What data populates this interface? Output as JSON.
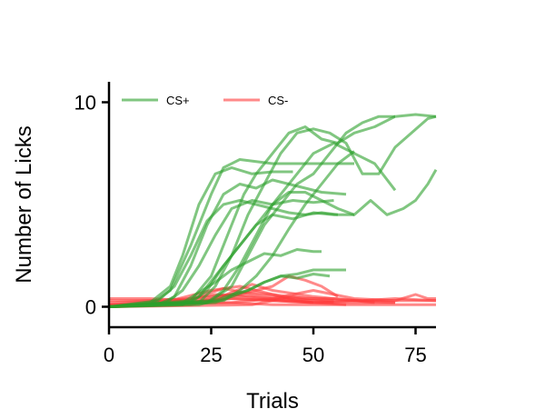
{
  "chart_data": {
    "type": "line",
    "title": "",
    "xlabel": "Trials",
    "ylabel": "Number of Licks",
    "xlim": [
      0,
      80
    ],
    "ylim": [
      -1,
      11
    ],
    "xticks": [
      0,
      25,
      50,
      75
    ],
    "yticks": [
      0,
      10
    ],
    "grid": false,
    "legend": {
      "placement": "top-left",
      "entries": [
        {
          "label": "CS+",
          "color": "#2ca02c"
        },
        {
          "label": "CS-",
          "color": "#ff3b3b"
        }
      ]
    },
    "colors": {
      "cs_plus": "#2ca02c",
      "cs_minus": "#ff3b3b"
    },
    "series_cs_plus": [
      {
        "x": [
          0,
          10,
          15,
          20,
          25,
          28,
          32,
          40,
          45,
          50,
          55,
          60
        ],
        "y": [
          0,
          0.1,
          0.8,
          3,
          5.5,
          6.8,
          7.2,
          7,
          7,
          7,
          7,
          7
        ]
      },
      {
        "x": [
          0,
          10,
          15,
          18,
          22,
          26,
          30,
          35,
          40,
          45
        ],
        "y": [
          0,
          0.2,
          1,
          2.5,
          5,
          6.5,
          6.8,
          6.5,
          6.6,
          6.6
        ]
      },
      {
        "x": [
          0,
          12,
          16,
          20,
          24,
          28,
          32,
          36,
          40,
          44,
          48,
          52,
          58
        ],
        "y": [
          0,
          0.1,
          0.5,
          2,
          4,
          5.5,
          6,
          5.8,
          6.2,
          6,
          5.8,
          5.6,
          5.5
        ]
      },
      {
        "x": [
          0,
          14,
          18,
          22,
          26,
          30,
          35,
          40,
          45,
          50,
          55
        ],
        "y": [
          0,
          0.2,
          0.8,
          2,
          3.5,
          4.8,
          5.2,
          5,
          5.2,
          5.1,
          5.2
        ]
      },
      {
        "x": [
          0,
          12,
          16,
          20,
          24,
          28,
          32,
          36,
          40,
          44,
          48,
          52,
          56
        ],
        "y": [
          0,
          0.3,
          1,
          2.5,
          4.2,
          5,
          5.2,
          5,
          4.8,
          4.6,
          4.5,
          4.6,
          4.5
        ]
      },
      {
        "x": [
          0,
          20,
          25,
          30,
          33,
          36,
          40,
          44,
          48,
          52,
          56,
          60,
          65,
          70,
          75,
          80
        ],
        "y": [
          0,
          0.3,
          1.5,
          4,
          5.5,
          6.5,
          7.5,
          8.5,
          8.8,
          8.2,
          8,
          8.5,
          8.8,
          9.3,
          9.4,
          9.3
        ]
      },
      {
        "x": [
          0,
          22,
          26,
          30,
          34,
          38,
          42,
          46,
          50,
          54,
          58,
          62,
          66,
          70,
          74,
          78,
          80
        ],
        "y": [
          0,
          0.2,
          1,
          2.5,
          4.5,
          6,
          7.5,
          8.5,
          8.7,
          8.5,
          8,
          6.5,
          6.5,
          7.8,
          8.5,
          9.2,
          9.3
        ]
      },
      {
        "x": [
          0,
          24,
          28,
          32,
          36,
          40,
          44,
          48,
          52,
          56,
          60,
          64,
          68,
          72,
          75,
          78,
          80
        ],
        "y": [
          0,
          0.2,
          0.8,
          2,
          3.5,
          5,
          5.6,
          5.6,
          5.2,
          4.8,
          4.5,
          5.2,
          4.5,
          4.8,
          5.2,
          6,
          6.7
        ]
      },
      {
        "x": [
          0,
          20,
          24,
          28,
          32,
          36,
          40,
          45,
          50,
          55,
          60
        ],
        "y": [
          0,
          0.2,
          0.8,
          2,
          3,
          4,
          4.5,
          4.3,
          4.6,
          4.5,
          4.5
        ]
      },
      {
        "x": [
          0,
          18,
          22,
          26,
          30,
          34,
          38,
          42,
          46,
          50,
          55,
          60,
          65,
          70
        ],
        "y": [
          0,
          0.1,
          0.5,
          1.5,
          2.5,
          3.5,
          4.5,
          5.5,
          6.5,
          7.5,
          8,
          7.5,
          7,
          5.7
        ]
      },
      {
        "x": [
          0,
          28,
          32,
          36,
          40,
          44,
          48,
          52,
          56,
          60
        ],
        "y": [
          0,
          0.3,
          0.8,
          1.5,
          2.5,
          3.8,
          5,
          6,
          7,
          7.6
        ]
      },
      {
        "x": [
          0,
          25,
          30,
          34,
          38,
          42,
          46,
          50,
          54,
          58,
          62,
          66,
          70
        ],
        "y": [
          0,
          0.3,
          1,
          2.5,
          4,
          5,
          6,
          6.5,
          7.5,
          8.5,
          9,
          9.3,
          9.3
        ]
      },
      {
        "x": [
          0,
          18,
          22,
          26,
          30,
          34,
          38,
          42,
          46,
          50,
          52
        ],
        "y": [
          0,
          0.2,
          0.7,
          1.2,
          1.8,
          2.2,
          2.6,
          2.5,
          2.8,
          2.7,
          2.7
        ]
      },
      {
        "x": [
          0,
          22,
          26,
          30,
          34,
          38,
          42,
          46,
          50,
          54,
          58
        ],
        "y": [
          0,
          0.1,
          0.3,
          0.6,
          0.8,
          1.2,
          1.5,
          1.6,
          1.8,
          1.8,
          1.8
        ]
      },
      {
        "x": [
          0,
          26,
          30,
          34,
          38,
          42,
          46,
          50,
          54
        ],
        "y": [
          0,
          0.2,
          0.5,
          0.8,
          1.2,
          1.5,
          1.4,
          1.6,
          1.5
        ]
      }
    ],
    "series_cs_minus": [
      {
        "x": [
          0,
          20,
          30,
          40,
          50,
          60,
          70,
          80
        ],
        "y": [
          0.2,
          0.4,
          0.6,
          0.4,
          0.3,
          0.3,
          0.3,
          0.3
        ]
      },
      {
        "x": [
          0,
          15,
          25,
          32,
          40,
          48,
          55,
          62,
          70,
          80
        ],
        "y": [
          0.1,
          0.3,
          0.8,
          1,
          0.6,
          0.4,
          0.4,
          0.3,
          0.4,
          0.3
        ]
      },
      {
        "x": [
          0,
          20,
          30,
          36,
          40,
          44,
          48,
          52,
          56
        ],
        "y": [
          0,
          0.2,
          0.6,
          0.8,
          1,
          1.5,
          1.3,
          1,
          0.5
        ]
      },
      {
        "x": [
          0,
          30,
          40,
          45,
          50,
          55,
          60,
          70,
          75,
          78,
          80
        ],
        "y": [
          0.1,
          0.2,
          0.4,
          0.6,
          0.8,
          0.6,
          0.4,
          0.3,
          0.6,
          0.4,
          0.4
        ]
      },
      {
        "x": [
          0,
          10,
          20,
          30,
          40,
          50,
          60,
          70
        ],
        "y": [
          0.3,
          0.3,
          0.2,
          0.4,
          0.3,
          0.2,
          0.3,
          0.2
        ]
      },
      {
        "x": [
          0,
          25,
          30,
          35,
          40,
          50,
          60,
          65
        ],
        "y": [
          0,
          0.3,
          0.7,
          1.1,
          0.8,
          0.5,
          0.3,
          0.2
        ]
      },
      {
        "x": [
          0,
          15,
          22,
          28,
          35,
          45,
          55
        ],
        "y": [
          0,
          0.2,
          0.5,
          0.9,
          0.6,
          0.4,
          0.2
        ]
      },
      {
        "x": [
          0,
          10,
          20,
          30,
          40,
          50,
          60,
          70,
          80
        ],
        "y": [
          0.1,
          0.1,
          0.2,
          0.2,
          0.1,
          0.1,
          0.1,
          0.1,
          0.1
        ]
      },
      {
        "x": [
          0,
          20,
          28,
          34,
          40,
          46,
          50
        ],
        "y": [
          0,
          0.1,
          0.4,
          0.7,
          0.6,
          0.3,
          0.2
        ]
      },
      {
        "x": [
          0,
          35,
          40,
          45,
          50,
          55
        ],
        "y": [
          0,
          0.1,
          0.3,
          0.5,
          0.4,
          0.3
        ]
      },
      {
        "x": [
          0,
          18,
          26,
          32,
          38,
          44,
          50,
          58
        ],
        "y": [
          0,
          0.3,
          0.6,
          0.5,
          0.4,
          0.3,
          0.2,
          0.1
        ]
      },
      {
        "x": [
          0,
          10,
          20,
          30,
          40,
          50,
          60,
          70
        ],
        "y": [
          0.4,
          0.4,
          0.3,
          0.4,
          0.3,
          0.2,
          0.2,
          0.2
        ]
      }
    ]
  }
}
